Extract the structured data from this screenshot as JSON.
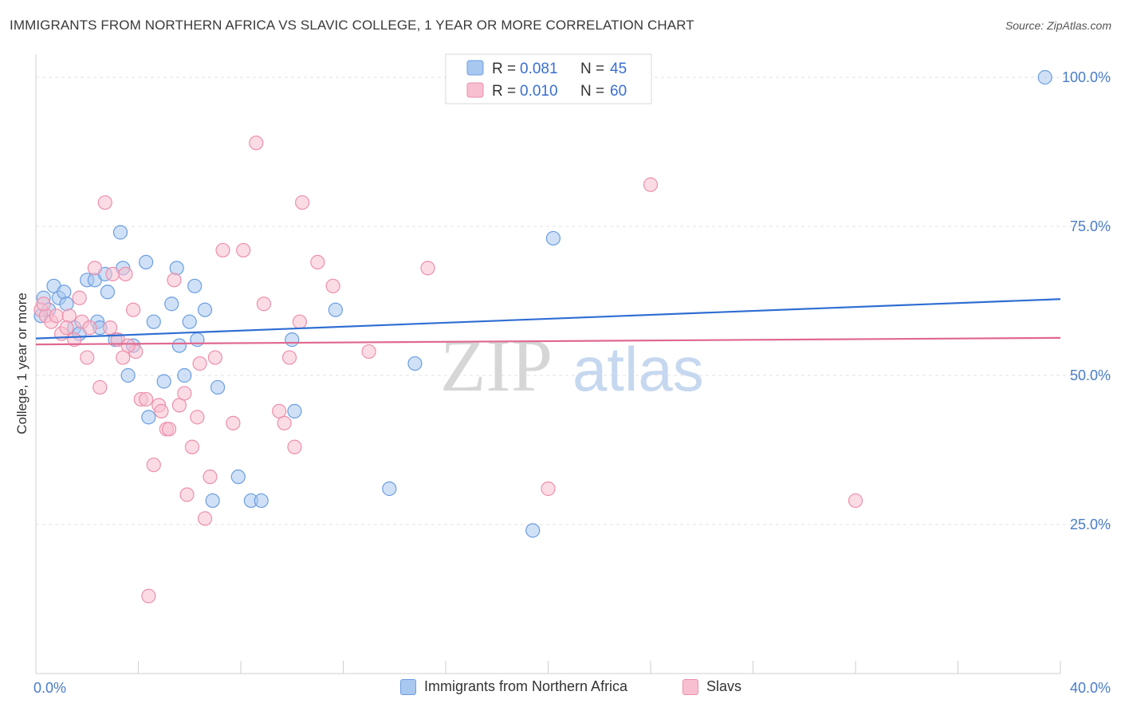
{
  "header": {
    "title": "IMMIGRANTS FROM NORTHERN AFRICA VS SLAVIC COLLEGE, 1 YEAR OR MORE CORRELATION CHART",
    "source": "Source: ZipAtlas.com"
  },
  "watermark": {
    "zip": "ZIP",
    "atlas": "atlas"
  },
  "legend_top": {
    "r_label": "R =",
    "n_label": "N =",
    "rows": [
      {
        "r": "0.081",
        "n": "45"
      },
      {
        "r": "0.010",
        "n": "60"
      }
    ]
  },
  "chart_data": {
    "type": "scatter",
    "title": "IMMIGRANTS FROM NORTHERN AFRICA VS SLAVIC COLLEGE, 1 YEAR OR MORE CORRELATION CHART",
    "ylabel": "College, 1 year or more",
    "xlabel": "",
    "xlim": [
      0,
      40
    ],
    "ylim": [
      0,
      102
    ],
    "x_tick_labels": [
      "0.0%",
      "40.0%"
    ],
    "y_ticks": [
      25,
      50,
      75,
      100
    ],
    "y_tick_labels": [
      "25.0%",
      "50.0%",
      "75.0%",
      "100.0%"
    ],
    "grid": "horizontal dashed",
    "legend_position": "top-center",
    "colors": {
      "blue_fill": "#a9c8f0",
      "blue_stroke": "#6b9ee0",
      "blue_line": "#2f6ed2",
      "pink_fill": "#f7bfd0",
      "pink_stroke": "#ec8fab",
      "pink_line": "#e06890"
    },
    "series": [
      {
        "name": "Immigrants from Northern Africa",
        "color": "blue",
        "trend": {
          "x": [
            0,
            40
          ],
          "y": [
            56.2,
            62.8
          ]
        },
        "points": [
          [
            0.3,
            63
          ],
          [
            0.5,
            61
          ],
          [
            0.7,
            65
          ],
          [
            0.9,
            63
          ],
          [
            1.1,
            64
          ],
          [
            1.2,
            62
          ],
          [
            1.5,
            58
          ],
          [
            1.7,
            57
          ],
          [
            2.0,
            66
          ],
          [
            2.3,
            66
          ],
          [
            2.4,
            59
          ],
          [
            2.7,
            67
          ],
          [
            2.8,
            64
          ],
          [
            3.1,
            56
          ],
          [
            3.3,
            74
          ],
          [
            3.4,
            68
          ],
          [
            3.6,
            50
          ],
          [
            3.8,
            55
          ],
          [
            4.3,
            69
          ],
          [
            4.4,
            43
          ],
          [
            4.6,
            59
          ],
          [
            5.0,
            49
          ],
          [
            5.3,
            62
          ],
          [
            5.5,
            68
          ],
          [
            5.6,
            55
          ],
          [
            5.8,
            50
          ],
          [
            6.0,
            59
          ],
          [
            6.2,
            65
          ],
          [
            6.3,
            56
          ],
          [
            6.6,
            61
          ],
          [
            6.9,
            29
          ],
          [
            7.1,
            48
          ],
          [
            7.9,
            33
          ],
          [
            8.4,
            29
          ],
          [
            8.8,
            29
          ],
          [
            10.0,
            56
          ],
          [
            10.1,
            44
          ],
          [
            11.7,
            61
          ],
          [
            13.8,
            31
          ],
          [
            14.8,
            52
          ],
          [
            19.4,
            24
          ],
          [
            20.2,
            73
          ],
          [
            39.4,
            100
          ],
          [
            0.2,
            60
          ],
          [
            2.5,
            58
          ]
        ]
      },
      {
        "name": "Slavs",
        "color": "pink",
        "trend": {
          "x": [
            0,
            40
          ],
          "y": [
            55.2,
            56.3
          ]
        },
        "points": [
          [
            0.2,
            61
          ],
          [
            0.4,
            60
          ],
          [
            0.6,
            59
          ],
          [
            0.8,
            60
          ],
          [
            1.0,
            57
          ],
          [
            1.3,
            60
          ],
          [
            1.5,
            56
          ],
          [
            1.7,
            63
          ],
          [
            1.8,
            59
          ],
          [
            2.0,
            53
          ],
          [
            2.1,
            58
          ],
          [
            2.3,
            68
          ],
          [
            2.5,
            48
          ],
          [
            2.7,
            79
          ],
          [
            2.9,
            58
          ],
          [
            3.0,
            67
          ],
          [
            3.2,
            56
          ],
          [
            3.4,
            53
          ],
          [
            3.5,
            67
          ],
          [
            3.8,
            61
          ],
          [
            3.9,
            54
          ],
          [
            4.1,
            46
          ],
          [
            4.3,
            46
          ],
          [
            4.4,
            13
          ],
          [
            4.6,
            35
          ],
          [
            4.8,
            45
          ],
          [
            4.9,
            44
          ],
          [
            5.1,
            41
          ],
          [
            5.2,
            41
          ],
          [
            5.4,
            66
          ],
          [
            5.6,
            45
          ],
          [
            5.8,
            47
          ],
          [
            5.9,
            30
          ],
          [
            6.1,
            38
          ],
          [
            6.3,
            43
          ],
          [
            6.4,
            52
          ],
          [
            6.6,
            26
          ],
          [
            6.8,
            33
          ],
          [
            7.0,
            53
          ],
          [
            7.3,
            71
          ],
          [
            7.7,
            42
          ],
          [
            8.1,
            71
          ],
          [
            8.6,
            89
          ],
          [
            8.9,
            62
          ],
          [
            9.5,
            44
          ],
          [
            9.7,
            42
          ],
          [
            9.9,
            53
          ],
          [
            10.1,
            38
          ],
          [
            10.3,
            59
          ],
          [
            10.4,
            79
          ],
          [
            11.0,
            69
          ],
          [
            11.6,
            65
          ],
          [
            13.0,
            54
          ],
          [
            15.3,
            68
          ],
          [
            20.0,
            31
          ],
          [
            24.0,
            82
          ],
          [
            32.0,
            29
          ],
          [
            0.3,
            62
          ],
          [
            1.2,
            58
          ],
          [
            3.6,
            55
          ]
        ]
      }
    ]
  },
  "legend_bottom": {
    "items": [
      {
        "label": "Immigrants from Northern Africa"
      },
      {
        "label": "Slavs"
      }
    ]
  }
}
